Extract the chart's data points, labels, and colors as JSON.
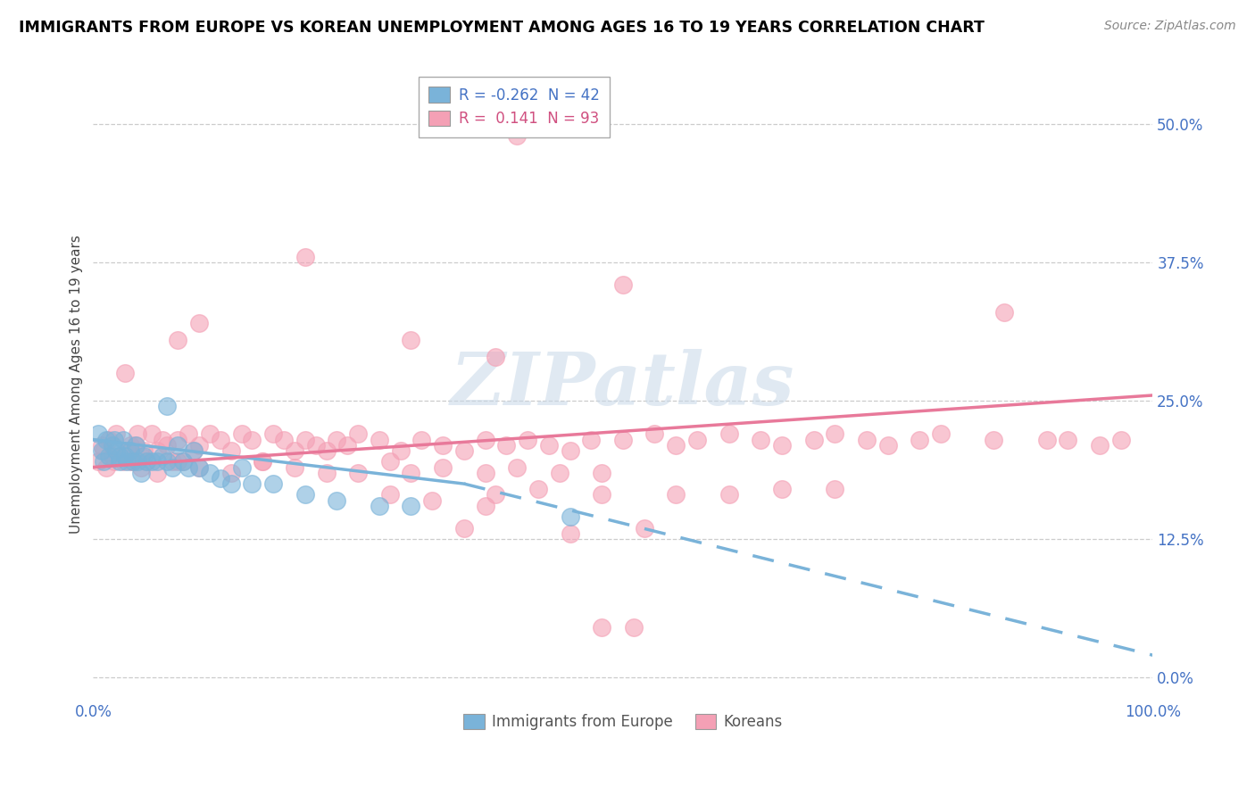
{
  "title": "IMMIGRANTS FROM EUROPE VS KOREAN UNEMPLOYMENT AMONG AGES 16 TO 19 YEARS CORRELATION CHART",
  "source": "Source: ZipAtlas.com",
  "ylabel": "Unemployment Among Ages 16 to 19 years",
  "xlim": [
    0.0,
    1.0
  ],
  "ylim": [
    -0.02,
    0.55
  ],
  "yticks": [
    0.0,
    0.125,
    0.25,
    0.375,
    0.5
  ],
  "ytick_labels": [
    "0.0%",
    "12.5%",
    "25.0%",
    "37.5%",
    "50.0%"
  ],
  "xticks": [
    0.0,
    0.25,
    0.5,
    0.75,
    1.0
  ],
  "xtick_labels": [
    "0.0%",
    "",
    "",
    "",
    "100.0%"
  ],
  "color_blue": "#7ab3d9",
  "color_pink": "#f4a0b5",
  "watermark_text": "ZIPatlas",
  "blue_scatter": [
    [
      0.005,
      0.22
    ],
    [
      0.008,
      0.205
    ],
    [
      0.01,
      0.195
    ],
    [
      0.012,
      0.215
    ],
    [
      0.015,
      0.2
    ],
    [
      0.018,
      0.21
    ],
    [
      0.02,
      0.215
    ],
    [
      0.022,
      0.205
    ],
    [
      0.025,
      0.2
    ],
    [
      0.025,
      0.195
    ],
    [
      0.028,
      0.215
    ],
    [
      0.03,
      0.2
    ],
    [
      0.032,
      0.195
    ],
    [
      0.035,
      0.205
    ],
    [
      0.038,
      0.195
    ],
    [
      0.04,
      0.21
    ],
    [
      0.042,
      0.195
    ],
    [
      0.045,
      0.185
    ],
    [
      0.048,
      0.2
    ],
    [
      0.05,
      0.195
    ],
    [
      0.055,
      0.195
    ],
    [
      0.06,
      0.195
    ],
    [
      0.065,
      0.2
    ],
    [
      0.07,
      0.195
    ],
    [
      0.075,
      0.19
    ],
    [
      0.08,
      0.21
    ],
    [
      0.085,
      0.195
    ],
    [
      0.09,
      0.19
    ],
    [
      0.095,
      0.205
    ],
    [
      0.1,
      0.19
    ],
    [
      0.11,
      0.185
    ],
    [
      0.12,
      0.18
    ],
    [
      0.13,
      0.175
    ],
    [
      0.14,
      0.19
    ],
    [
      0.15,
      0.175
    ],
    [
      0.17,
      0.175
    ],
    [
      0.2,
      0.165
    ],
    [
      0.23,
      0.16
    ],
    [
      0.27,
      0.155
    ],
    [
      0.07,
      0.245
    ],
    [
      0.3,
      0.155
    ],
    [
      0.45,
      0.145
    ]
  ],
  "pink_scatter": [
    [
      0.005,
      0.195
    ],
    [
      0.008,
      0.21
    ],
    [
      0.01,
      0.205
    ],
    [
      0.012,
      0.19
    ],
    [
      0.015,
      0.215
    ],
    [
      0.018,
      0.2
    ],
    [
      0.02,
      0.195
    ],
    [
      0.022,
      0.22
    ],
    [
      0.025,
      0.2
    ],
    [
      0.028,
      0.195
    ],
    [
      0.03,
      0.275
    ],
    [
      0.032,
      0.205
    ],
    [
      0.035,
      0.21
    ],
    [
      0.038,
      0.195
    ],
    [
      0.04,
      0.21
    ],
    [
      0.042,
      0.22
    ],
    [
      0.045,
      0.2
    ],
    [
      0.048,
      0.205
    ],
    [
      0.05,
      0.195
    ],
    [
      0.055,
      0.22
    ],
    [
      0.06,
      0.205
    ],
    [
      0.065,
      0.215
    ],
    [
      0.07,
      0.21
    ],
    [
      0.075,
      0.195
    ],
    [
      0.08,
      0.215
    ],
    [
      0.085,
      0.195
    ],
    [
      0.09,
      0.22
    ],
    [
      0.095,
      0.205
    ],
    [
      0.1,
      0.21
    ],
    [
      0.11,
      0.22
    ],
    [
      0.12,
      0.215
    ],
    [
      0.13,
      0.205
    ],
    [
      0.14,
      0.22
    ],
    [
      0.15,
      0.215
    ],
    [
      0.16,
      0.195
    ],
    [
      0.17,
      0.22
    ],
    [
      0.18,
      0.215
    ],
    [
      0.19,
      0.205
    ],
    [
      0.2,
      0.215
    ],
    [
      0.21,
      0.21
    ],
    [
      0.22,
      0.205
    ],
    [
      0.23,
      0.215
    ],
    [
      0.24,
      0.21
    ],
    [
      0.25,
      0.22
    ],
    [
      0.27,
      0.215
    ],
    [
      0.29,
      0.205
    ],
    [
      0.31,
      0.215
    ],
    [
      0.33,
      0.21
    ],
    [
      0.35,
      0.205
    ],
    [
      0.37,
      0.215
    ],
    [
      0.39,
      0.21
    ],
    [
      0.41,
      0.215
    ],
    [
      0.43,
      0.21
    ],
    [
      0.45,
      0.205
    ],
    [
      0.47,
      0.215
    ],
    [
      0.5,
      0.215
    ],
    [
      0.53,
      0.22
    ],
    [
      0.55,
      0.21
    ],
    [
      0.57,
      0.215
    ],
    [
      0.6,
      0.22
    ],
    [
      0.63,
      0.215
    ],
    [
      0.65,
      0.21
    ],
    [
      0.68,
      0.215
    ],
    [
      0.7,
      0.22
    ],
    [
      0.73,
      0.215
    ],
    [
      0.75,
      0.21
    ],
    [
      0.78,
      0.215
    ],
    [
      0.8,
      0.22
    ],
    [
      0.85,
      0.215
    ],
    [
      0.9,
      0.215
    ],
    [
      0.92,
      0.215
    ],
    [
      0.95,
      0.21
    ],
    [
      0.97,
      0.215
    ],
    [
      0.035,
      0.195
    ],
    [
      0.045,
      0.19
    ],
    [
      0.06,
      0.185
    ],
    [
      0.08,
      0.195
    ],
    [
      0.1,
      0.19
    ],
    [
      0.13,
      0.185
    ],
    [
      0.16,
      0.195
    ],
    [
      0.19,
      0.19
    ],
    [
      0.22,
      0.185
    ],
    [
      0.25,
      0.185
    ],
    [
      0.28,
      0.195
    ],
    [
      0.3,
      0.185
    ],
    [
      0.33,
      0.19
    ],
    [
      0.37,
      0.185
    ],
    [
      0.4,
      0.19
    ],
    [
      0.44,
      0.185
    ],
    [
      0.48,
      0.185
    ],
    [
      0.28,
      0.165
    ],
    [
      0.32,
      0.16
    ],
    [
      0.38,
      0.165
    ],
    [
      0.42,
      0.17
    ],
    [
      0.48,
      0.165
    ],
    [
      0.55,
      0.165
    ],
    [
      0.6,
      0.165
    ],
    [
      0.65,
      0.17
    ],
    [
      0.7,
      0.17
    ],
    [
      0.35,
      0.135
    ],
    [
      0.45,
      0.13
    ],
    [
      0.52,
      0.135
    ],
    [
      0.48,
      0.045
    ],
    [
      0.51,
      0.045
    ],
    [
      0.3,
      0.305
    ],
    [
      0.38,
      0.29
    ],
    [
      0.5,
      0.355
    ],
    [
      0.37,
      0.155
    ],
    [
      0.86,
      0.33
    ],
    [
      0.1,
      0.32
    ],
    [
      0.2,
      0.38
    ],
    [
      0.4,
      0.49
    ],
    [
      0.08,
      0.305
    ]
  ],
  "blue_line": [
    [
      0.0,
      0.215
    ],
    [
      0.35,
      0.175
    ]
  ],
  "blue_line_dashed": [
    [
      0.35,
      0.175
    ],
    [
      1.0,
      0.02
    ]
  ],
  "pink_line": [
    [
      0.0,
      0.19
    ],
    [
      1.0,
      0.255
    ]
  ]
}
